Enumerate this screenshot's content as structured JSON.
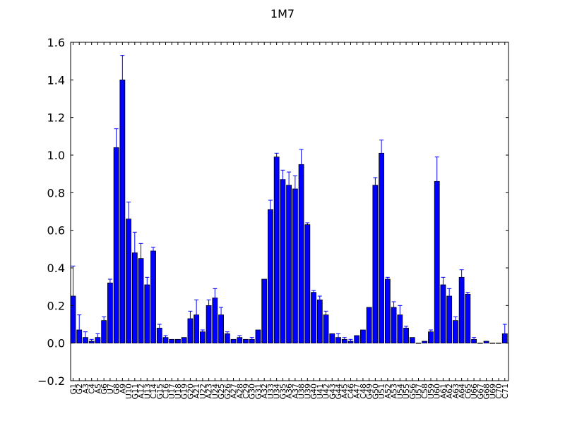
{
  "chart_data": {
    "type": "bar",
    "title": "1M7",
    "xlabel": "",
    "ylabel": "",
    "ylim": [
      -0.2,
      1.6
    ],
    "yticks": [
      "−0.2",
      "0.0",
      "0.2",
      "0.4",
      "0.6",
      "0.8",
      "1.0",
      "1.2",
      "1.4",
      "1.6"
    ],
    "ytick_values": [
      -0.2,
      0.0,
      0.2,
      0.4,
      0.6,
      0.8,
      1.0,
      1.2,
      1.4,
      1.6
    ],
    "grid": false,
    "bar_color": "#0000ff",
    "error_color": "#0000ff",
    "categories": [
      "G1",
      "G2",
      "A3",
      "C4",
      "A5",
      "G6",
      "U7",
      "G8",
      "A9",
      "U10",
      "G11",
      "A12",
      "U13",
      "C14",
      "G15",
      "C16",
      "U17",
      "U18",
      "G19",
      "G20",
      "A21",
      "U22",
      "A23",
      "U24",
      "G25",
      "G26",
      "A27",
      "A28",
      "C29",
      "G30",
      "G31",
      "A32",
      "U33",
      "U34",
      "G35",
      "A36",
      "A37",
      "U38",
      "U39",
      "G40",
      "U41",
      "U42",
      "G43",
      "G44",
      "A45",
      "C46",
      "A47",
      "C48",
      "G49",
      "G50",
      "U51",
      "A52",
      "A53",
      "U54",
      "U55",
      "G56",
      "U57",
      "C58",
      "U59",
      "U60",
      "A61",
      "A62",
      "A63",
      "A64",
      "C65",
      "U66",
      "G67",
      "G68",
      "U69",
      "C70",
      "C71"
    ],
    "values": [
      0.25,
      0.07,
      0.03,
      0.01,
      0.03,
      0.12,
      0.32,
      1.04,
      1.4,
      0.66,
      0.48,
      0.45,
      0.31,
      0.49,
      0.08,
      0.03,
      0.02,
      0.02,
      0.03,
      0.13,
      0.15,
      0.06,
      0.2,
      0.24,
      0.15,
      0.05,
      0.02,
      0.03,
      0.02,
      0.02,
      0.07,
      0.34,
      0.71,
      0.99,
      0.87,
      0.84,
      0.82,
      0.95,
      0.63,
      0.27,
      0.23,
      0.15,
      0.05,
      0.03,
      0.02,
      0.01,
      0.04,
      0.07,
      0.19,
      0.84,
      1.01,
      0.34,
      0.19,
      0.15,
      0.08,
      0.03,
      0.0,
      0.01,
      0.06,
      0.86,
      0.31,
      0.25,
      0.12,
      0.35,
      0.26,
      0.02,
      0.0,
      0.01,
      0.0,
      0.0,
      0.05
    ],
    "errors": [
      0.16,
      0.08,
      0.03,
      0.01,
      0.02,
      0.02,
      0.02,
      0.1,
      0.13,
      0.09,
      0.11,
      0.08,
      0.04,
      0.02,
      0.02,
      0.01,
      0.0,
      0.0,
      0.0,
      0.04,
      0.08,
      0.01,
      0.03,
      0.05,
      0.04,
      0.01,
      0.0,
      0.01,
      0.0,
      0.01,
      0.0,
      0.0,
      0.05,
      0.02,
      0.05,
      0.07,
      0.07,
      0.08,
      0.01,
      0.01,
      0.02,
      0.02,
      0.0,
      0.02,
      0.01,
      0.01,
      0.0,
      0.0,
      0.0,
      0.04,
      0.07,
      0.01,
      0.03,
      0.05,
      0.01,
      0.0,
      0.0,
      0.0,
      0.01,
      0.13,
      0.04,
      0.04,
      0.02,
      0.04,
      0.01,
      0.01,
      0.0,
      0.0,
      0.0,
      0.0,
      0.05
    ]
  }
}
